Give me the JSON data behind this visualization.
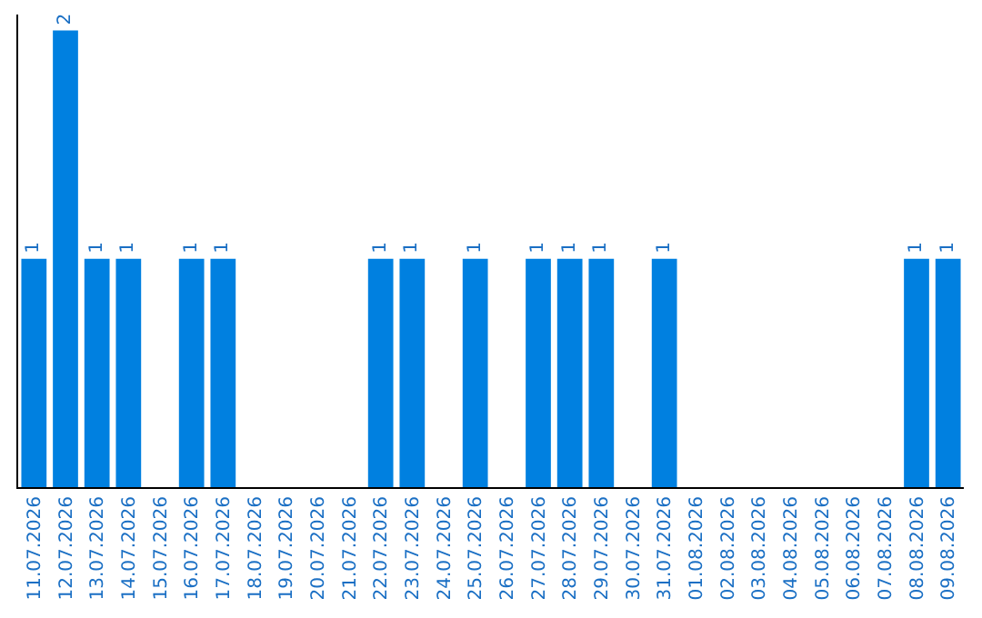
{
  "chart_data": {
    "type": "bar",
    "categories": [
      "11.07.2026",
      "12.07.2026",
      "13.07.2026",
      "14.07.2026",
      "15.07.2026",
      "16.07.2026",
      "17.07.2026",
      "18.07.2026",
      "19.07.2026",
      "20.07.2026",
      "21.07.2026",
      "22.07.2026",
      "23.07.2026",
      "24.07.2026",
      "25.07.2026",
      "26.07.2026",
      "27.07.2026",
      "28.07.2026",
      "29.07.2026",
      "30.07.2026",
      "31.07.2026",
      "01.08.2026",
      "02.08.2026",
      "03.08.2026",
      "04.08.2026",
      "05.08.2026",
      "06.08.2026",
      "07.08.2026",
      "08.08.2026",
      "09.08.2026"
    ],
    "values": [
      1,
      2,
      1,
      1,
      0,
      1,
      1,
      0,
      0,
      0,
      0,
      1,
      1,
      0,
      1,
      0,
      1,
      1,
      1,
      0,
      1,
      0,
      0,
      0,
      0,
      0,
      0,
      0,
      1,
      1
    ],
    "value_labels": [
      "1",
      "2",
      "1",
      "1",
      null,
      "1",
      "1",
      null,
      null,
      null,
      null,
      "1",
      "1",
      null,
      "1",
      null,
      "1",
      "1",
      "1",
      null,
      "1",
      null,
      null,
      null,
      null,
      null,
      null,
      null,
      "1",
      "1"
    ],
    "color": "#0080e0",
    "ylim": [
      0,
      2.07
    ],
    "tick_labels": "x"
  }
}
